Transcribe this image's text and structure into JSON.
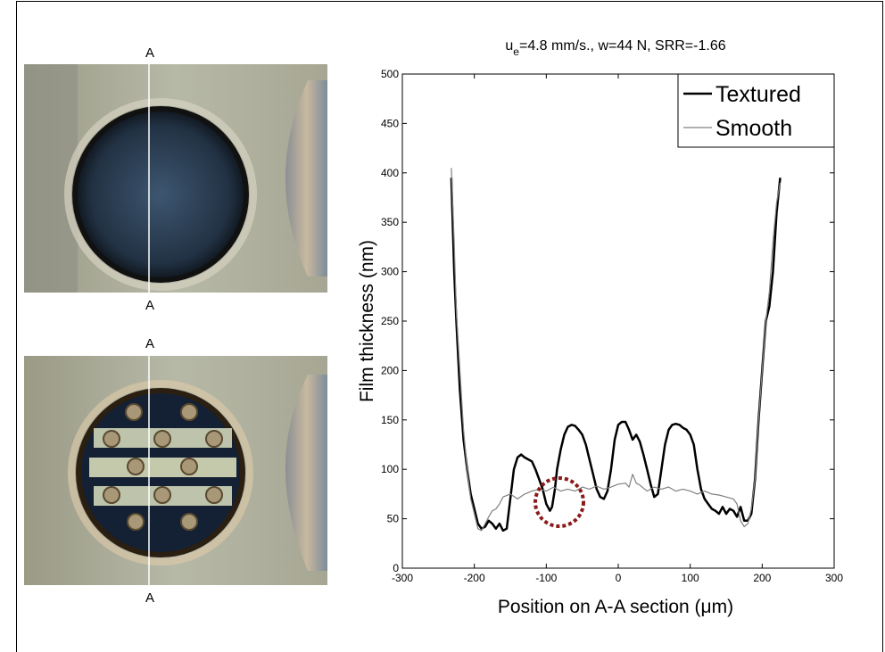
{
  "chart_data": {
    "type": "line",
    "title": {
      "main": "u",
      "sub": "e",
      "rest": "=4.8 mm/s., w=44 N, SRR=-1.66"
    },
    "x_label": "Position on A-A section (μm)",
    "y_label": "Film thickness (nm)",
    "section_labels": [
      "A",
      "A",
      "A",
      "A"
    ],
    "xlim": [
      -300,
      300
    ],
    "xticks": [
      -300,
      -200,
      -100,
      0,
      100,
      200,
      300
    ],
    "ylim": [
      0,
      500
    ],
    "yticks": [
      0,
      50,
      100,
      150,
      200,
      250,
      300,
      350,
      400,
      450,
      500
    ],
    "legend": "upper right",
    "grid": false,
    "series": [
      {
        "name": "Textured",
        "color": "#000000",
        "linewidth": 2.5,
        "x": [
          -232,
          -228,
          -225,
          -220,
          -215,
          -210,
          -205,
          -200,
          -195,
          -190,
          -185,
          -180,
          -175,
          -170,
          -165,
          -160,
          -155,
          -150,
          -145,
          -140,
          -135,
          -130,
          -125,
          -120,
          -115,
          -110,
          -105,
          -100,
          -95,
          -92,
          -88,
          -85,
          -80,
          -75,
          -70,
          -65,
          -60,
          -55,
          -50,
          -45,
          -40,
          -35,
          -30,
          -25,
          -20,
          -15,
          -10,
          -5,
          0,
          5,
          10,
          15,
          20,
          25,
          30,
          35,
          40,
          45,
          50,
          55,
          60,
          65,
          70,
          75,
          80,
          85,
          90,
          95,
          100,
          105,
          110,
          115,
          120,
          125,
          130,
          135,
          140,
          145,
          150,
          155,
          160,
          165,
          170,
          175,
          180,
          185,
          190,
          195,
          200,
          205,
          210,
          215,
          220,
          225
        ],
        "values": [
          395,
          300,
          250,
          180,
          130,
          100,
          75,
          60,
          45,
          40,
          42,
          48,
          45,
          40,
          45,
          38,
          40,
          70,
          100,
          112,
          115,
          112,
          110,
          108,
          100,
          90,
          80,
          65,
          58,
          62,
          80,
          100,
          120,
          135,
          143,
          145,
          144,
          140,
          135,
          125,
          110,
          95,
          80,
          72,
          70,
          78,
          100,
          130,
          145,
          148,
          148,
          140,
          130,
          135,
          128,
          115,
          100,
          85,
          72,
          75,
          100,
          125,
          140,
          145,
          146,
          145,
          142,
          140,
          135,
          125,
          100,
          80,
          70,
          65,
          60,
          58,
          55,
          62,
          55,
          60,
          58,
          52,
          62,
          48,
          48,
          55,
          90,
          150,
          200,
          250,
          265,
          300,
          360,
          395
        ]
      },
      {
        "name": "Smooth",
        "color": "#808080",
        "linewidth": 1.2,
        "x": [
          -232,
          -228,
          -225,
          -220,
          -215,
          -210,
          -205,
          -200,
          -195,
          -190,
          -185,
          -180,
          -175,
          -170,
          -165,
          -160,
          -150,
          -140,
          -130,
          -120,
          -110,
          -100,
          -90,
          -80,
          -70,
          -60,
          -50,
          -40,
          -30,
          -20,
          -10,
          0,
          10,
          15,
          20,
          25,
          30,
          40,
          50,
          60,
          70,
          80,
          90,
          100,
          110,
          120,
          130,
          140,
          150,
          160,
          165,
          170,
          175,
          180,
          185,
          190,
          195,
          200,
          205,
          210,
          215,
          220,
          225
        ],
        "values": [
          405,
          330,
          260,
          200,
          140,
          100,
          70,
          55,
          40,
          38,
          45,
          52,
          58,
          60,
          65,
          72,
          75,
          70,
          75,
          78,
          80,
          78,
          82,
          78,
          80,
          78,
          82,
          80,
          83,
          80,
          82,
          85,
          86,
          82,
          95,
          86,
          84,
          78,
          82,
          80,
          82,
          78,
          80,
          78,
          75,
          78,
          75,
          74,
          72,
          70,
          65,
          48,
          42,
          45,
          60,
          90,
          150,
          200,
          250,
          280,
          330,
          370,
          390
        ]
      }
    ]
  }
}
